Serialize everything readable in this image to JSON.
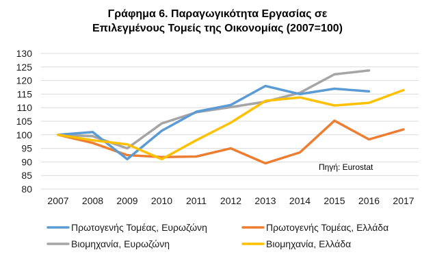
{
  "chart_data": {
    "type": "line",
    "title_line1": "Γράφημα 6. Παραγωγικότητα Εργασίας σε",
    "title_line2": "Επιλεγμένους Τομείς της Οικονομίας (2007=100)",
    "x": [
      "2007",
      "2008",
      "2009",
      "2010",
      "2011",
      "2012",
      "2013",
      "2014",
      "2015",
      "2016",
      "2017"
    ],
    "ylim": [
      80,
      130
    ],
    "yticks": [
      "80",
      "85",
      "90",
      "95",
      "100",
      "105",
      "110",
      "115",
      "120",
      "125",
      "130"
    ],
    "grid": true,
    "source": "Πηγή: Eurostat",
    "legend_position": "bottom",
    "series": [
      {
        "name": "Πρωτογενής Τομέας, Ευρωζώνη",
        "color": "#5b9bd5",
        "values": [
          100,
          101,
          91,
          101.5,
          108.5,
          111,
          118,
          115,
          117,
          116,
          null
        ]
      },
      {
        "name": "Πρωτογενής Τομέας, Ελλάδα",
        "color": "#ed7d31",
        "values": [
          100,
          97,
          92.5,
          91.8,
          92,
          95,
          89.5,
          93.5,
          105.2,
          98.3,
          102
        ]
      },
      {
        "name": "Βιομηχανία, Ευρωζώνη",
        "color": "#a5a5a5",
        "values": [
          100,
          99.5,
          95,
          104.2,
          108.3,
          110.2,
          112.2,
          115.5,
          122.3,
          123.7,
          null
        ]
      },
      {
        "name": "Βιομηχανία, Ελλάδα",
        "color": "#ffc000",
        "values": [
          100,
          98,
          96.5,
          91,
          98,
          104.5,
          112.5,
          113.8,
          110.8,
          111.8,
          116.5
        ]
      }
    ]
  }
}
